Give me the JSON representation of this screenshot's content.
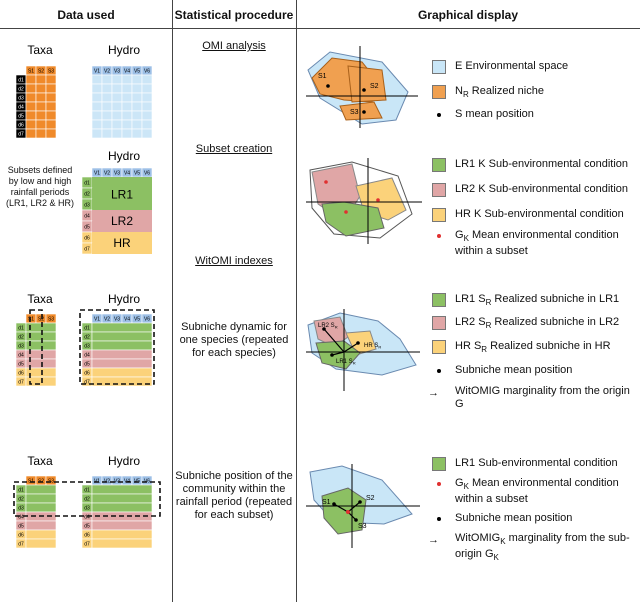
{
  "headers": {
    "data_used": "Data used",
    "procedure": "Statistical procedure",
    "display": "Graphical display"
  },
  "matrix": {
    "taxa": "Taxa",
    "hydro": "Hydro",
    "species_cols": [
      "S1",
      "S2",
      "S3"
    ],
    "hydro_cols": [
      "V1",
      "V2",
      "V3",
      "V4",
      "V5",
      "V6"
    ],
    "rows": [
      "d1",
      "d2",
      "d3",
      "d4",
      "d5",
      "d6",
      "d7"
    ],
    "subsets_note": "Subsets defined by low and high rainfall periods (LR1, LR2 & HR)",
    "lr1": "LR1",
    "lr2": "LR2",
    "hr": "HR"
  },
  "procedures": {
    "omi": "OMI analysis",
    "subset": "Subset creation",
    "witomi": "WitOMI indexes",
    "dynamic": "Subniche dynamic for one species (repeated for each species)",
    "position": "Subniche position of the community within the rainfall period (repeated for each subset)"
  },
  "legend1": [
    {
      "key": "env",
      "text": "E Environmental space",
      "color": "#c9e6f7"
    },
    {
      "key": "niche",
      "text": "N",
      "sub": "R",
      "rest": " Realized niche",
      "color": "#f0a050"
    },
    {
      "key": "mean",
      "text": "S mean position",
      "color": "#000000"
    }
  ],
  "legend2": [
    {
      "key": "lr1",
      "text": "LR1 K  Sub-environmental condition",
      "color": "#8cc063"
    },
    {
      "key": "lr2",
      "text": "LR2 K  Sub-environmental condition",
      "color": "#e0a6a6"
    },
    {
      "key": "hr",
      "text": "HR K  Sub-environmental condition",
      "color": "#fbd27a"
    },
    {
      "key": "gk",
      "text": "G",
      "sub": "K",
      "rest": " Mean environmental condition within a subset",
      "color": "#e03030"
    }
  ],
  "legend3": [
    {
      "key": "lr1",
      "text": "LR1 S",
      "sub": "R",
      "rest": " Realized subniche in LR1",
      "color": "#8cc063"
    },
    {
      "key": "lr2",
      "text": "LR2 S",
      "sub": "R",
      "rest": " Realized subniche in LR2",
      "color": "#e0a6a6"
    },
    {
      "key": "hr",
      "text": "HR S",
      "sub": "R",
      "rest": " Realized subniche in HR",
      "color": "#fbd27a"
    },
    {
      "key": "mean",
      "text": "Subniche mean position",
      "color": "#000000"
    },
    {
      "key": "arrow",
      "text": "WitOMIG marginality from the origin G"
    }
  ],
  "legend4": [
    {
      "key": "lr1",
      "text": "LR1  Sub-environmental condition",
      "color": "#8cc063"
    },
    {
      "key": "gk",
      "text": "G",
      "sub": "K",
      "rest": " Mean environmental condition within a subset",
      "color": "#e03030"
    },
    {
      "key": "mean",
      "text": "Subniche mean position",
      "color": "#000000"
    },
    {
      "key": "arrow",
      "text": "WitOMIG",
      "sub": "K",
      "rest": "  marginality from the sub-origin G",
      "sub2": "K"
    }
  ],
  "plot_labels": {
    "s1": "S1",
    "s2": "S2",
    "s3": "S3",
    "lr2sr": "LR2 S",
    "hrsr": "HR S",
    "lr1sr": "LR1 S",
    "r": "R"
  },
  "colors": {
    "taxa": "#f08a2a",
    "hydro_head": "#9cbfe6",
    "hydro_body": "#cce6f7",
    "green": "#8cc063",
    "pink": "#e0a6a6",
    "yellow": "#fbd27a",
    "black": "#000000"
  }
}
